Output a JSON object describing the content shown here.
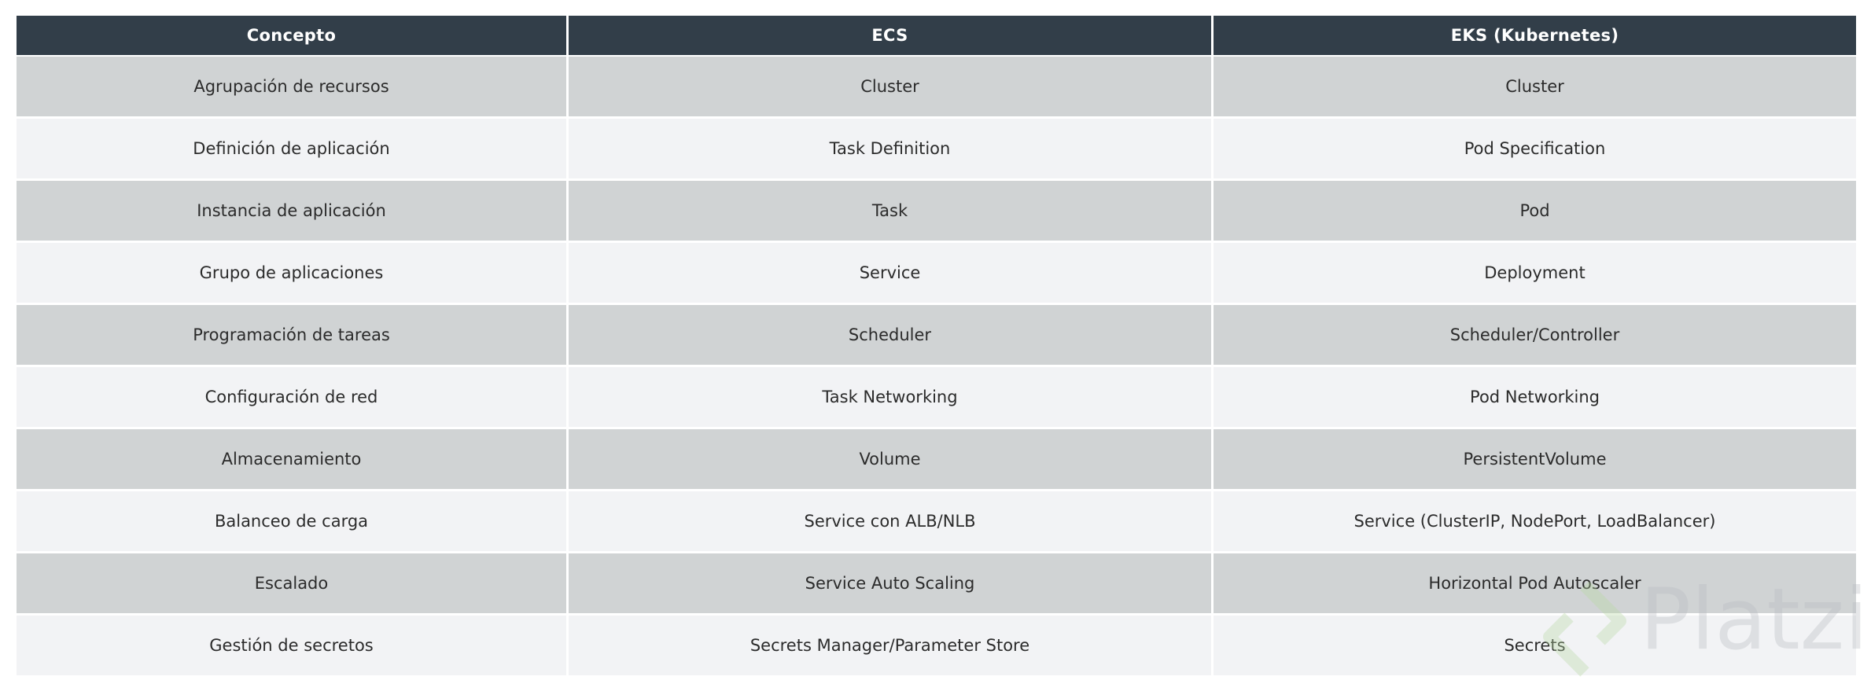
{
  "table": {
    "headers": [
      "Concepto",
      "ECS",
      "EKS (Kubernetes)"
    ],
    "rows": [
      [
        "Agrupación de recursos",
        "Cluster",
        "Cluster"
      ],
      [
        "Definición de aplicación",
        "Task Definition",
        "Pod Specification"
      ],
      [
        "Instancia de aplicación",
        "Task",
        "Pod"
      ],
      [
        "Grupo de aplicaciones",
        "Service",
        "Deployment"
      ],
      [
        "Programación de tareas",
        "Scheduler",
        "Scheduler/Controller"
      ],
      [
        "Configuración de red",
        "Task Networking",
        "Pod Networking"
      ],
      [
        "Almacenamiento",
        "Volume",
        "PersistentVolume"
      ],
      [
        "Balanceo de carga",
        "Service con ALB/NLB",
        "Service (ClusterIP, NodePort, LoadBalancer)"
      ],
      [
        "Escalado",
        "Service Auto Scaling",
        "Horizontal Pod Autoscaler"
      ],
      [
        "Gestión de secretos",
        "Secrets Manager/Parameter Store",
        "Secrets"
      ]
    ]
  },
  "colors": {
    "header_bg": "#323e49",
    "row_odd": "#d0d3d4",
    "row_even": "#f2f3f5"
  },
  "watermark": {
    "text": "Platzi",
    "icon": "platzi-logo-icon"
  }
}
